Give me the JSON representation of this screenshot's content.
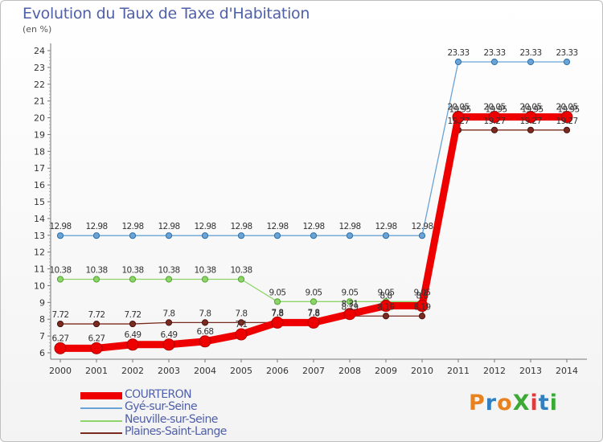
{
  "title": "Evolution du Taux de Taxe d'Habitation",
  "subtitle": "(en %)",
  "logo_text": "ProXiti",
  "logo_colors": [
    "#e8821f",
    "#2f7fc1",
    "#e8821f",
    "#3aaa35",
    "#e03a3a",
    "#2f7fc1",
    "#3aaa35"
  ],
  "chart_data": {
    "type": "line",
    "title": "Evolution du Taux de Taxe d'Habitation",
    "ylabel": "(en %)",
    "xlabel": "",
    "x": [
      "2000",
      "2001",
      "2002",
      "2003",
      "2004",
      "2005",
      "2006",
      "2007",
      "2008",
      "2009",
      "2010",
      "2011",
      "2012",
      "2013",
      "2014"
    ],
    "ylim": [
      6,
      24
    ],
    "yticks": [
      6,
      7,
      8,
      9,
      10,
      11,
      12,
      13,
      14,
      15,
      16,
      17,
      18,
      19,
      20,
      21,
      22,
      23,
      24
    ],
    "grid": false,
    "legend_position": "bottom-left",
    "series": [
      {
        "name": "COURTERON",
        "color": "#ee0000",
        "values": [
          6.27,
          6.27,
          6.49,
          6.49,
          6.68,
          7.1,
          7.8,
          7.8,
          8.31,
          8.8,
          8.8,
          20.05,
          20.05,
          20.05,
          20.05
        ],
        "labels": [
          "6.27",
          "6.27",
          "6.49",
          "6.49",
          "6.68",
          "7.1",
          "7.8",
          "7.8",
          "8.31",
          "8.8",
          "8.8",
          "20.05",
          "20.05",
          "20.05",
          "20.05"
        ]
      },
      {
        "name": "Gyé-sur-Seine",
        "color": "#6aa3d5",
        "values": [
          12.98,
          12.98,
          12.98,
          12.98,
          12.98,
          12.98,
          12.98,
          12.98,
          12.98,
          12.98,
          12.98,
          23.33,
          23.33,
          23.33,
          23.33
        ],
        "labels": [
          "12.98",
          "12.98",
          "12.98",
          "12.98",
          "12.98",
          "12.98",
          "12.98",
          "12.98",
          "12.98",
          "12.98",
          "12.98",
          "23.33",
          "23.33",
          "23.33",
          "23.33"
        ]
      },
      {
        "name": "Neuville-sur-Seine",
        "color": "#8fd46a",
        "values": [
          10.38,
          10.38,
          10.38,
          10.38,
          10.38,
          10.38,
          9.05,
          9.05,
          9.05,
          9.05,
          9.05,
          19.95,
          19.95,
          19.95,
          19.95
        ],
        "labels": [
          "10.38",
          "10.38",
          "10.38",
          "10.38",
          "10.38",
          "10.38",
          "9.05",
          "9.05",
          "9.05",
          "9.05",
          "9.05",
          "19.95",
          "19.95",
          "19.95",
          "19.95"
        ]
      },
      {
        "name": "Plaines-Saint-Lange",
        "color": "#7a2a1e",
        "values": [
          7.72,
          7.72,
          7.72,
          7.8,
          7.8,
          7.8,
          7.8,
          7.8,
          8.19,
          8.19,
          8.19,
          19.27,
          19.27,
          19.27,
          19.27
        ],
        "labels": [
          "7.72",
          "7.72",
          "7.72",
          "7.8",
          "7.8",
          "7.8",
          "7.8",
          "7.8",
          "8.19",
          "8.19",
          "8.19",
          "19.27",
          "19.27",
          "19.27",
          "19.27"
        ]
      }
    ]
  }
}
